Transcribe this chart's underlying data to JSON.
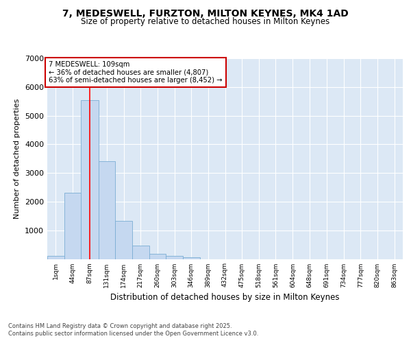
{
  "title1": "7, MEDESWELL, FURZTON, MILTON KEYNES, MK4 1AD",
  "title2": "Size of property relative to detached houses in Milton Keynes",
  "xlabel": "Distribution of detached houses by size in Milton Keynes",
  "ylabel": "Number of detached properties",
  "bins": [
    "1sqm",
    "44sqm",
    "87sqm",
    "131sqm",
    "174sqm",
    "217sqm",
    "260sqm",
    "303sqm",
    "346sqm",
    "389sqm",
    "432sqm",
    "475sqm",
    "518sqm",
    "561sqm",
    "604sqm",
    "648sqm",
    "691sqm",
    "734sqm",
    "777sqm",
    "820sqm",
    "863sqm"
  ],
  "bin_edges": [
    1,
    44,
    87,
    131,
    174,
    217,
    260,
    303,
    346,
    389,
    432,
    475,
    518,
    561,
    604,
    648,
    691,
    734,
    777,
    820,
    863,
    906
  ],
  "values": [
    100,
    2300,
    5550,
    3420,
    1320,
    460,
    175,
    100,
    60,
    0,
    0,
    0,
    0,
    0,
    0,
    0,
    0,
    0,
    0,
    0,
    0
  ],
  "bar_color": "#c5d8f0",
  "bar_edge_color": "#7badd4",
  "red_line_x": 109,
  "annotation_title": "7 MEDESWELL: 109sqm",
  "annotation_line1": "← 36% of detached houses are smaller (4,807)",
  "annotation_line2": "63% of semi-detached houses are larger (8,452) →",
  "annotation_box_color": "#ffffff",
  "annotation_box_edge": "#cc0000",
  "ylim": [
    0,
    7000
  ],
  "yticks": [
    0,
    1000,
    2000,
    3000,
    4000,
    5000,
    6000,
    7000
  ],
  "bg_color": "#dce8f5",
  "grid_color": "#ffffff",
  "footer1": "Contains HM Land Registry data © Crown copyright and database right 2025.",
  "footer2": "Contains public sector information licensed under the Open Government Licence v3.0.",
  "fig_bg": "#ffffff"
}
